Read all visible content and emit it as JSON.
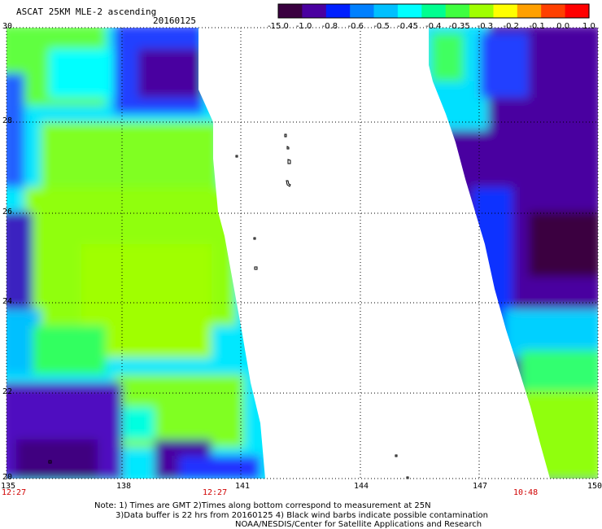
{
  "header": {
    "title": "ASCAT 25KM MLE-2 ascending",
    "date": "20160125"
  },
  "colorbar": {
    "labels": [
      "-15.0",
      "-1.0",
      "-0.8",
      "-0.6",
      "-0.5",
      "-0.45",
      "-0.4",
      "-0.35",
      "-0.3",
      "-0.2",
      "-0.1",
      "0.0",
      "1.0"
    ],
    "colors": [
      "#3a0040",
      "#4a00a0",
      "#0020ff",
      "#0080ff",
      "#00c0ff",
      "#00ffff",
      "#00ff90",
      "#40ff40",
      "#a0ff00",
      "#ffff00",
      "#ffa000",
      "#ff4000",
      "#ff0000"
    ]
  },
  "axes": {
    "lon_labels": [
      "135",
      "138",
      "141",
      "144",
      "147",
      "150"
    ],
    "lat_labels": [
      "30",
      "28",
      "26",
      "24",
      "22",
      "20"
    ]
  },
  "swath_times": [
    "12:27",
    "12:27",
    "10:48"
  ],
  "notes": [
    "Note: 1) Times are GMT 2)Times along bottom correspond to measurement at 25N",
    "3)Data buffer is 22 hrs from 20160125 4) Black wind barbs indicate possible contamination",
    "NOAA/NESDIS/Center for Satellite Applications and Research"
  ]
}
